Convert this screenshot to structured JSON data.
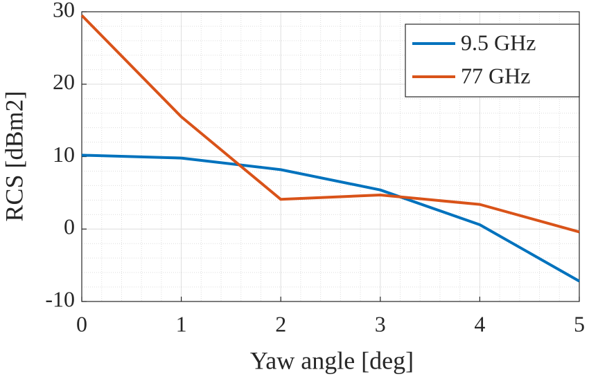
{
  "chart_data": {
    "type": "line",
    "xlabel": "Yaw angle [deg]",
    "ylabel": "RCS [dBm2]",
    "x": [
      0,
      1,
      2,
      3,
      4,
      5
    ],
    "series": [
      {
        "name": "9.5 GHz",
        "color": "#0072bd",
        "values": [
          10.2,
          9.8,
          8.2,
          5.4,
          0.6,
          -7.2
        ]
      },
      {
        "name": "77 GHz",
        "color": "#d95319",
        "values": [
          29.5,
          15.5,
          4.1,
          4.7,
          3.4,
          -0.4
        ]
      }
    ],
    "xlim": [
      0,
      5
    ],
    "xticks": [
      0,
      1,
      2,
      3,
      4,
      5
    ],
    "ylim": [
      -10,
      30
    ],
    "yticks": [
      -10,
      0,
      10,
      20,
      30
    ],
    "xminorticks": [
      0.2,
      0.4,
      0.6,
      0.8,
      1.2,
      1.4,
      1.6,
      1.8,
      2.2,
      2.4,
      2.6,
      2.8,
      3.2,
      3.4,
      3.6,
      3.8,
      4.2,
      4.4,
      4.6,
      4.8
    ],
    "yminorticks": [
      -8,
      -6,
      -4,
      -2,
      2,
      4,
      6,
      8,
      12,
      14,
      16,
      18,
      22,
      24,
      26,
      28
    ],
    "grid": true,
    "minor_grid": true,
    "legend_position": "upper-right"
  }
}
